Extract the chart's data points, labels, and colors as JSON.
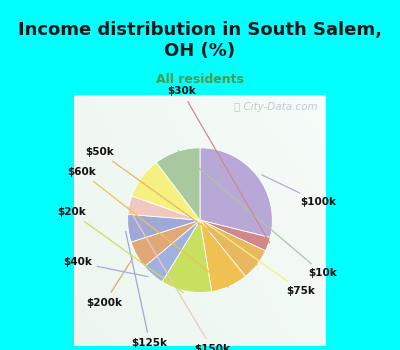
{
  "title": "Income distribution in South Salem,\nOH (%)",
  "subtitle": "All residents",
  "title_color": "#1a1a1a",
  "subtitle_color": "#4a9a4a",
  "bg_cyan": "#00ffff",
  "bg_chart_light": "#e8f8f0",
  "watermark": "ⓘ City-Data.com",
  "labels": [
    "$100k",
    "$30k",
    "$50k",
    "$60k",
    "$20k",
    "$40k",
    "$200k",
    "$125k",
    "$150k",
    "$75k",
    "$10k"
  ],
  "sizes": [
    28,
    3,
    7,
    8,
    11,
    5,
    6,
    6,
    4,
    9,
    10
  ],
  "colors": [
    "#b8a8d8",
    "#d08888",
    "#e8b860",
    "#f0c050",
    "#c8e060",
    "#a0b0e0",
    "#e0a878",
    "#a0a8d8",
    "#f0c8c0",
    "#f5f080",
    "#a8c8a0"
  ],
  "startangle": 90,
  "figsize": [
    4.0,
    3.5
  ],
  "dpi": 100,
  "label_data": [
    [
      "$100k",
      1.18,
      0.18
    ],
    [
      "$10k",
      1.22,
      -0.53
    ],
    [
      "$75k",
      1.0,
      -0.7
    ],
    [
      "$150k",
      0.12,
      -1.28
    ],
    [
      "$125k",
      -0.5,
      -1.22
    ],
    [
      "$200k",
      -0.95,
      -0.82
    ],
    [
      "$40k",
      -1.22,
      -0.42
    ],
    [
      "$20k",
      -1.28,
      0.08
    ],
    [
      "$60k",
      -1.18,
      0.48
    ],
    [
      "$50k",
      -1.0,
      0.68
    ],
    [
      "$30k",
      -0.18,
      1.28
    ]
  ]
}
